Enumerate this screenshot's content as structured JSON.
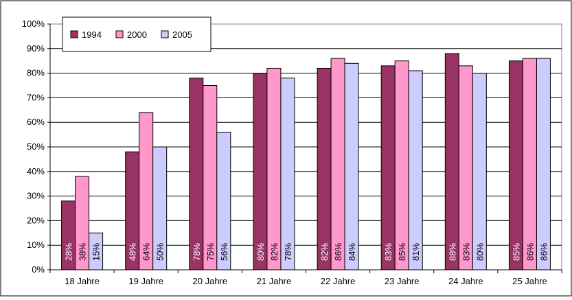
{
  "chart_data": {
    "type": "bar",
    "categories": [
      "18 Jahre",
      "19 Jahre",
      "20 Jahre",
      "21 Jahre",
      "22 Jahre",
      "23 Jahre",
      "24 Jahre",
      "25 Jahre"
    ],
    "series": [
      {
        "name": "1994",
        "color": "#993366",
        "values": [
          28,
          48,
          78,
          80,
          82,
          83,
          88,
          85
        ],
        "labels": [
          "28%",
          "48%",
          "78%",
          "80%",
          "82%",
          "83%",
          "88%",
          "85%"
        ],
        "label_color": "#ffffff"
      },
      {
        "name": "2000",
        "color": "#ff99cc",
        "values": [
          38,
          64,
          75,
          82,
          86,
          85,
          83,
          86
        ],
        "labels": [
          "38%",
          "64%",
          "75%",
          "82%",
          "86%",
          "85%",
          "83%",
          "86%"
        ],
        "label_color": "#000000"
      },
      {
        "name": "2005",
        "color": "#ccccff",
        "values": [
          15,
          50,
          56,
          78,
          84,
          81,
          80,
          86
        ],
        "labels": [
          "15%",
          "50%",
          "56%",
          "78%",
          "84%",
          "81%",
          "80%",
          "86%"
        ],
        "label_color": "#000000"
      }
    ],
    "ylim": [
      0,
      100
    ],
    "yticks": [
      "0%",
      "10%",
      "20%",
      "30%",
      "40%",
      "50%",
      "60%",
      "70%",
      "80%",
      "90%",
      "100%"
    ],
    "ytick_values": [
      0,
      10,
      20,
      30,
      40,
      50,
      60,
      70,
      80,
      90,
      100
    ],
    "grid": true,
    "legend": "top-left"
  }
}
